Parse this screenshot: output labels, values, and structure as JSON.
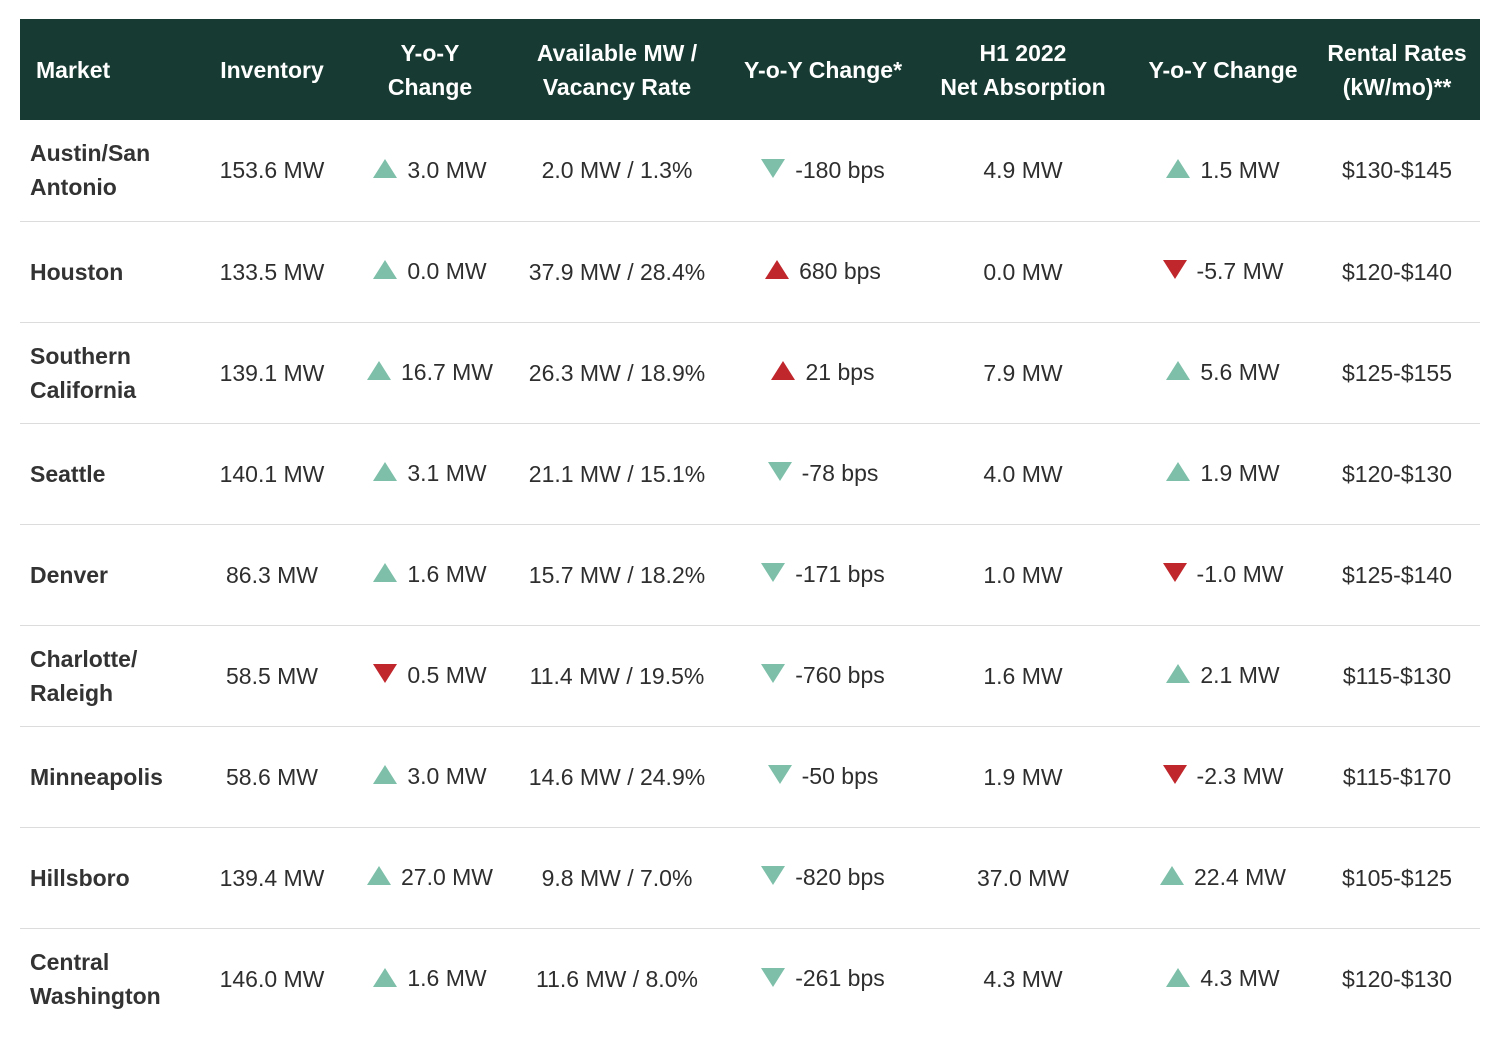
{
  "colors": {
    "header_bg": "#173b32",
    "up_green": "#7dbfa9",
    "down_green": "#7dbfa9",
    "up_red": "#c0272d",
    "down_red": "#c0272d"
  },
  "headers": {
    "market": "Market",
    "inventory": "Inventory",
    "yoy_inventory": "Y-o-Y Change",
    "available_line1": "Available MW /",
    "available_line2": "Vacancy Rate",
    "yoy_vacancy": "Y-o-Y Change*",
    "absorption_line1": "H1 2022",
    "absorption_line2": "Net Absorption",
    "yoy_absorption": "Y-o-Y Change",
    "rental_line1": "Rental Rates",
    "rental_line2": "(kW/mo)**"
  },
  "rows": [
    {
      "market_line1": "Austin/San",
      "market_line2": "Antonio",
      "inventory": "153.6 MW",
      "inv_change": {
        "text": "3.0 MW",
        "dir": "up",
        "color": "green"
      },
      "available": "2.0 MW / 1.3%",
      "vac_change": {
        "text": "-180 bps",
        "dir": "down",
        "color": "green"
      },
      "absorption": "4.9 MW",
      "abs_change": {
        "text": "1.5 MW",
        "dir": "up",
        "color": "green"
      },
      "rental": "$130-$145"
    },
    {
      "market_line1": "Houston",
      "market_line2": "",
      "inventory": "133.5 MW",
      "inv_change": {
        "text": "0.0 MW",
        "dir": "up",
        "color": "green"
      },
      "available": "37.9 MW / 28.4%",
      "vac_change": {
        "text": "680 bps",
        "dir": "up",
        "color": "red"
      },
      "absorption": "0.0 MW",
      "abs_change": {
        "text": "-5.7 MW",
        "dir": "down",
        "color": "red"
      },
      "rental": "$120-$140"
    },
    {
      "market_line1": "Southern",
      "market_line2": "California",
      "inventory": "139.1 MW",
      "inv_change": {
        "text": "16.7 MW",
        "dir": "up",
        "color": "green"
      },
      "available": "26.3 MW / 18.9%",
      "vac_change": {
        "text": "21 bps",
        "dir": "up",
        "color": "red"
      },
      "absorption": "7.9 MW",
      "abs_change": {
        "text": "5.6 MW",
        "dir": "up",
        "color": "green"
      },
      "rental": "$125-$155"
    },
    {
      "market_line1": "Seattle",
      "market_line2": "",
      "inventory": "140.1 MW",
      "inv_change": {
        "text": "3.1 MW",
        "dir": "up",
        "color": "green"
      },
      "available": "21.1 MW / 15.1%",
      "vac_change": {
        "text": "-78 bps",
        "dir": "down",
        "color": "green"
      },
      "absorption": "4.0 MW",
      "abs_change": {
        "text": "1.9 MW",
        "dir": "up",
        "color": "green"
      },
      "rental": "$120-$130"
    },
    {
      "market_line1": "Denver",
      "market_line2": "",
      "inventory": "86.3 MW",
      "inv_change": {
        "text": "1.6 MW",
        "dir": "up",
        "color": "green"
      },
      "available": "15.7 MW / 18.2%",
      "vac_change": {
        "text": "-171 bps",
        "dir": "down",
        "color": "green"
      },
      "absorption": "1.0 MW",
      "abs_change": {
        "text": "-1.0 MW",
        "dir": "down",
        "color": "red"
      },
      "rental": "$125-$140"
    },
    {
      "market_line1": "Charlotte/",
      "market_line2": "Raleigh",
      "inventory": "58.5 MW",
      "inv_change": {
        "text": "0.5 MW",
        "dir": "down",
        "color": "red"
      },
      "available": "11.4 MW / 19.5%",
      "vac_change": {
        "text": "-760 bps",
        "dir": "down",
        "color": "green"
      },
      "absorption": "1.6 MW",
      "abs_change": {
        "text": "2.1 MW",
        "dir": "up",
        "color": "green"
      },
      "rental": "$115-$130"
    },
    {
      "market_line1": "Minneapolis",
      "market_line2": "",
      "inventory": "58.6 MW",
      "inv_change": {
        "text": "3.0 MW",
        "dir": "up",
        "color": "green"
      },
      "available": "14.6 MW / 24.9%",
      "vac_change": {
        "text": "-50 bps",
        "dir": "down",
        "color": "green"
      },
      "absorption": "1.9 MW",
      "abs_change": {
        "text": "-2.3 MW",
        "dir": "down",
        "color": "red"
      },
      "rental": "$115-$170"
    },
    {
      "market_line1": "Hillsboro",
      "market_line2": "",
      "inventory": "139.4 MW",
      "inv_change": {
        "text": "27.0 MW",
        "dir": "up",
        "color": "green"
      },
      "available": "9.8 MW / 7.0%",
      "vac_change": {
        "text": "-820 bps",
        "dir": "down",
        "color": "green"
      },
      "absorption": "37.0 MW",
      "abs_change": {
        "text": "22.4 MW",
        "dir": "up",
        "color": "green"
      },
      "rental": "$105-$125"
    },
    {
      "market_line1": "Central",
      "market_line2": "Washington",
      "inventory": "146.0 MW",
      "inv_change": {
        "text": "1.6 MW",
        "dir": "up",
        "color": "green"
      },
      "available": "11.6 MW / 8.0%",
      "vac_change": {
        "text": "-261 bps",
        "dir": "down",
        "color": "green"
      },
      "absorption": "4.3 MW",
      "abs_change": {
        "text": "4.3 MW",
        "dir": "up",
        "color": "green"
      },
      "rental": "$120-$130"
    }
  ]
}
